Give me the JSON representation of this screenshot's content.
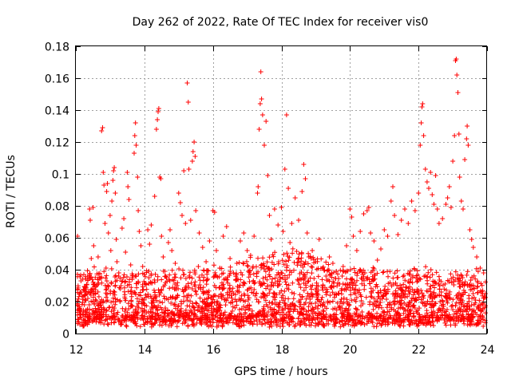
{
  "chart_data": {
    "type": "scatter",
    "title": "Day 262 of 2022, Rate Of TEC Index for receiver vis0",
    "xlabel": "GPS time / hours",
    "ylabel": "ROTI / TECUs",
    "xlim": [
      12,
      24
    ],
    "ylim": [
      0,
      0.18
    ],
    "x_ticks": [
      12,
      14,
      16,
      18,
      20,
      22,
      24
    ],
    "x_tick_labels": [
      "12",
      "14",
      "16",
      "18",
      "20",
      "22",
      "24"
    ],
    "y_ticks": [
      0,
      0.02,
      0.04,
      0.06,
      0.08,
      0.1,
      0.12,
      0.14,
      0.16,
      0.18
    ],
    "y_tick_labels": [
      "0",
      "0.02",
      "0.04",
      "0.06",
      "0.08",
      "0.1",
      "0.12",
      "0.14",
      "0.16",
      "0.18"
    ],
    "grid": true,
    "marker": "+",
    "color": "#ff0000",
    "series": [
      {
        "name": "vis0",
        "points": [
          [
            12.05,
            0.061
          ],
          [
            12.08,
            0.009
          ],
          [
            12.12,
            0.025
          ],
          [
            12.15,
            0.033
          ],
          [
            12.2,
            0.012
          ],
          [
            12.25,
            0.018
          ],
          [
            12.3,
            0.006
          ],
          [
            12.35,
            0.022
          ],
          [
            12.4,
            0.078
          ],
          [
            12.42,
            0.071
          ],
          [
            12.45,
            0.047
          ],
          [
            12.5,
            0.079
          ],
          [
            12.52,
            0.055
          ],
          [
            12.55,
            0.031
          ],
          [
            12.6,
            0.014
          ],
          [
            12.65,
            0.048
          ],
          [
            12.7,
            0.019
          ],
          [
            12.75,
            0.127
          ],
          [
            12.78,
            0.129
          ],
          [
            12.8,
            0.101
          ],
          [
            12.82,
            0.093
          ],
          [
            12.85,
            0.069
          ],
          [
            12.88,
            0.041
          ],
          [
            12.9,
            0.089
          ],
          [
            12.92,
            0.094
          ],
          [
            12.95,
            0.063
          ],
          [
            13.0,
            0.074
          ],
          [
            13.02,
            0.052
          ],
          [
            13.05,
            0.083
          ],
          [
            13.08,
            0.096
          ],
          [
            13.1,
            0.102
          ],
          [
            13.12,
            0.104
          ],
          [
            13.15,
            0.088
          ],
          [
            13.18,
            0.059
          ],
          [
            13.2,
            0.045
          ],
          [
            13.25,
            0.036
          ],
          [
            13.3,
            0.028
          ],
          [
            13.35,
            0.066
          ],
          [
            13.4,
            0.072
          ],
          [
            13.45,
            0.051
          ],
          [
            13.5,
            0.101
          ],
          [
            13.52,
            0.092
          ],
          [
            13.55,
            0.084
          ],
          [
            13.6,
            0.043
          ],
          [
            13.65,
            0.035
          ],
          [
            13.7,
            0.113
          ],
          [
            13.72,
            0.124
          ],
          [
            13.74,
            0.132
          ],
          [
            13.76,
            0.118
          ],
          [
            13.8,
            0.098
          ],
          [
            13.82,
            0.077
          ],
          [
            13.85,
            0.064
          ],
          [
            13.9,
            0.055
          ],
          [
            13.95,
            0.042
          ],
          [
            14.0,
            0.037
          ],
          [
            14.05,
            0.031
          ],
          [
            14.1,
            0.065
          ],
          [
            14.15,
            0.056
          ],
          [
            14.2,
            0.068
          ],
          [
            14.3,
            0.086
          ],
          [
            14.35,
            0.128
          ],
          [
            14.38,
            0.134
          ],
          [
            14.4,
            0.139
          ],
          [
            14.42,
            0.141
          ],
          [
            14.45,
            0.098
          ],
          [
            14.48,
            0.097
          ],
          [
            14.5,
            0.061
          ],
          [
            14.55,
            0.048
          ],
          [
            14.6,
            0.039
          ],
          [
            14.7,
            0.057
          ],
          [
            14.75,
            0.065
          ],
          [
            14.8,
            0.052
          ],
          [
            14.9,
            0.044
          ],
          [
            15.0,
            0.088
          ],
          [
            15.05,
            0.082
          ],
          [
            15.1,
            0.074
          ],
          [
            15.15,
            0.102
          ],
          [
            15.2,
            0.069
          ],
          [
            15.25,
            0.157
          ],
          [
            15.28,
            0.145
          ],
          [
            15.3,
            0.103
          ],
          [
            15.35,
            0.071
          ],
          [
            15.4,
            0.108
          ],
          [
            15.42,
            0.114
          ],
          [
            15.45,
            0.12
          ],
          [
            15.48,
            0.111
          ],
          [
            15.5,
            0.077
          ],
          [
            15.6,
            0.063
          ],
          [
            15.7,
            0.054
          ],
          [
            15.8,
            0.045
          ],
          [
            15.9,
            0.058
          ],
          [
            16.0,
            0.077
          ],
          [
            16.05,
            0.076
          ],
          [
            16.1,
            0.052
          ],
          [
            16.2,
            0.041
          ],
          [
            16.3,
            0.061
          ],
          [
            16.4,
            0.067
          ],
          [
            16.5,
            0.047
          ],
          [
            16.6,
            0.038
          ],
          [
            16.7,
            0.044
          ],
          [
            16.8,
            0.058
          ],
          [
            16.9,
            0.063
          ],
          [
            17.0,
            0.052
          ],
          [
            17.1,
            0.049
          ],
          [
            17.2,
            0.061
          ],
          [
            17.3,
            0.088
          ],
          [
            17.32,
            0.092
          ],
          [
            17.35,
            0.128
          ],
          [
            17.38,
            0.144
          ],
          [
            17.4,
            0.164
          ],
          [
            17.42,
            0.147
          ],
          [
            17.45,
            0.137
          ],
          [
            17.5,
            0.118
          ],
          [
            17.55,
            0.133
          ],
          [
            17.6,
            0.099
          ],
          [
            17.65,
            0.074
          ],
          [
            17.7,
            0.059
          ],
          [
            17.8,
            0.078
          ],
          [
            17.9,
            0.068
          ],
          [
            18.0,
            0.079
          ],
          [
            18.05,
            0.064
          ],
          [
            18.1,
            0.103
          ],
          [
            18.15,
            0.137
          ],
          [
            18.2,
            0.091
          ],
          [
            18.25,
            0.057
          ],
          [
            18.3,
            0.069
          ],
          [
            18.4,
            0.085
          ],
          [
            18.5,
            0.071
          ],
          [
            18.6,
            0.089
          ],
          [
            18.65,
            0.106
          ],
          [
            18.7,
            0.097
          ],
          [
            18.75,
            0.063
          ],
          [
            18.8,
            0.048
          ],
          [
            18.9,
            0.052
          ],
          [
            19.0,
            0.045
          ],
          [
            19.1,
            0.059
          ],
          [
            19.2,
            0.041
          ],
          [
            19.3,
            0.036
          ],
          [
            19.4,
            0.048
          ],
          [
            19.5,
            0.044
          ],
          [
            19.6,
            0.039
          ],
          [
            19.7,
            0.031
          ],
          [
            19.8,
            0.042
          ],
          [
            19.9,
            0.055
          ],
          [
            20.0,
            0.078
          ],
          [
            20.05,
            0.073
          ],
          [
            20.1,
            0.061
          ],
          [
            20.2,
            0.052
          ],
          [
            20.3,
            0.064
          ],
          [
            20.4,
            0.075
          ],
          [
            20.5,
            0.077
          ],
          [
            20.55,
            0.079
          ],
          [
            20.6,
            0.063
          ],
          [
            20.7,
            0.058
          ],
          [
            20.8,
            0.046
          ],
          [
            20.9,
            0.053
          ],
          [
            21.0,
            0.065
          ],
          [
            21.1,
            0.061
          ],
          [
            21.2,
            0.083
          ],
          [
            21.25,
            0.092
          ],
          [
            21.3,
            0.074
          ],
          [
            21.4,
            0.062
          ],
          [
            21.5,
            0.071
          ],
          [
            21.6,
            0.078
          ],
          [
            21.7,
            0.069
          ],
          [
            21.8,
            0.083
          ],
          [
            21.9,
            0.077
          ],
          [
            22.0,
            0.088
          ],
          [
            22.05,
            0.118
          ],
          [
            22.08,
            0.132
          ],
          [
            22.1,
            0.142
          ],
          [
            22.12,
            0.144
          ],
          [
            22.15,
            0.124
          ],
          [
            22.2,
            0.103
          ],
          [
            22.25,
            0.095
          ],
          [
            22.3,
            0.091
          ],
          [
            22.35,
            0.101
          ],
          [
            22.4,
            0.087
          ],
          [
            22.45,
            0.081
          ],
          [
            22.5,
            0.099
          ],
          [
            22.55,
            0.078
          ],
          [
            22.6,
            0.069
          ],
          [
            22.7,
            0.072
          ],
          [
            22.8,
            0.081
          ],
          [
            22.85,
            0.085
          ],
          [
            22.9,
            0.092
          ],
          [
            22.95,
            0.079
          ],
          [
            23.0,
            0.108
          ],
          [
            23.05,
            0.124
          ],
          [
            23.08,
            0.171
          ],
          [
            23.1,
            0.172
          ],
          [
            23.12,
            0.162
          ],
          [
            23.15,
            0.151
          ],
          [
            23.18,
            0.125
          ],
          [
            23.2,
            0.098
          ],
          [
            23.25,
            0.083
          ],
          [
            23.3,
            0.078
          ],
          [
            23.35,
            0.109
          ],
          [
            23.4,
            0.122
          ],
          [
            23.42,
            0.13
          ],
          [
            23.45,
            0.118
          ],
          [
            23.5,
            0.065
          ],
          [
            23.55,
            0.059
          ],
          [
            23.6,
            0.054
          ],
          [
            23.7,
            0.048
          ],
          [
            23.8,
            0.041
          ],
          [
            23.9,
            0.038
          ],
          [
            23.95,
            0.025
          ]
        ]
      }
    ],
    "generated_background": {
      "description": "dense low-level cloud of points between 0 and ~0.04 across the whole time range",
      "count": 2600,
      "seed": 262
    }
  }
}
